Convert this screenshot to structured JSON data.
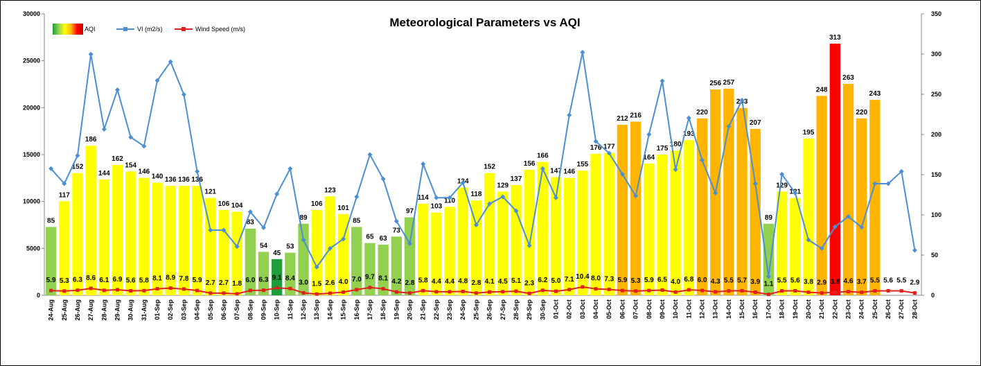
{
  "chart_data": {
    "type": "combo",
    "title": "Meteorological Parameters vs AQI",
    "categories": [
      "24-Aug",
      "25-Aug",
      "26-Aug",
      "27-Aug",
      "28-Aug",
      "29-Aug",
      "30-Aug",
      "31-Aug",
      "01-Sep",
      "02-Sep",
      "03-Sep",
      "04-Sep",
      "05-Sep",
      "06-Sep",
      "07-Sep",
      "08-Sep",
      "09-Sep",
      "10-Sep",
      "11-Sep",
      "12-Sep",
      "13-Sep",
      "14-Sep",
      "15-Sep",
      "16-Sep",
      "17-Sep",
      "18-Sep",
      "19-Sep",
      "20-Sep",
      "21-Sep",
      "22-Sep",
      "23-Sep",
      "24-Sep",
      "25-Sep",
      "26-Sep",
      "27-Sep",
      "28-Sep",
      "29-Sep",
      "30-Sep",
      "01-Oct",
      "02-Oct",
      "03-Oct",
      "04-Oct",
      "05-Oct",
      "06-Oct",
      "07-Oct",
      "08-Oct",
      "09-Oct",
      "10-Oct",
      "11-Oct",
      "12-Oct",
      "13-Oct",
      "14-Oct",
      "15-Oct",
      "16-Oct",
      "17-Oct",
      "18-Oct",
      "19-Oct",
      "20-Oct",
      "21-Oct",
      "22-Oct",
      "23-Oct",
      "24-Oct",
      "25-Oct",
      "26-Oct",
      "27-Oct",
      "28-Oct"
    ],
    "series": [
      {
        "name": "AQI",
        "kind": "bar",
        "axis": "y2",
        "values": [
          85,
          117,
          152,
          186,
          144,
          162,
          154,
          146,
          140,
          136,
          136,
          136,
          121,
          106,
          104,
          83,
          54,
          45,
          53,
          89,
          106,
          123,
          101,
          85,
          65,
          63,
          73,
          97,
          114,
          103,
          110,
          134,
          118,
          152,
          129,
          137,
          156,
          166,
          147,
          146,
          155,
          176,
          177,
          212,
          216,
          164,
          175,
          180,
          193,
          220,
          256,
          257,
          233,
          207,
          89,
          129,
          121,
          195,
          248,
          313,
          263,
          220,
          243,
          null,
          null,
          null
        ],
        "colors": [
          "#92d050",
          "#ffff00",
          "#ffff00",
          "#ffff00",
          "#ffff00",
          "#ffff00",
          "#ffff00",
          "#ffff00",
          "#ffff00",
          "#ffff00",
          "#ffff00",
          "#ffff00",
          "#ffff00",
          "#ffff00",
          "#ffff00",
          "#92d050",
          "#92d050",
          "#1e9e3a",
          "#92d050",
          "#92d050",
          "#ffff00",
          "#ffff00",
          "#ffff00",
          "#92d050",
          "#92d050",
          "#92d050",
          "#92d050",
          "#92d050",
          "#ffff00",
          "#ffff00",
          "#ffff00",
          "#ffff00",
          "#ffff00",
          "#ffff00",
          "#ffff00",
          "#ffff00",
          "#ffff00",
          "#ffff00",
          "#ffff00",
          "#ffff00",
          "#ffff00",
          "#ffff00",
          "#ffff00",
          "#ffb400",
          "#ffb400",
          "#ffff00",
          "#ffff00",
          "#ffff00",
          "#ffff00",
          "#ffb400",
          "#ffb400",
          "#ffb400",
          "#ffb400",
          "#ffb400",
          "#92d050",
          "#ffff00",
          "#ffff00",
          "#ffff00",
          "#ffb400",
          "#ff0000",
          "#ffb400",
          "#ffb400",
          "#ffb400",
          null,
          null,
          null
        ]
      },
      {
        "name": "VI (m2/s)",
        "kind": "line",
        "color": "#4a8fd4",
        "values": [
          13500,
          11900,
          14900,
          25700,
          17700,
          21900,
          16850,
          15900,
          22900,
          24900,
          21400,
          13200,
          6950,
          6950,
          5200,
          8900,
          7200,
          10800,
          13500,
          5900,
          3000,
          5000,
          6000,
          10500,
          15000,
          12400,
          7900,
          5500,
          14000,
          10400,
          10400,
          12000,
          7500,
          9750,
          10500,
          9000,
          5300,
          13500,
          10400,
          19200,
          25900,
          16400,
          15150,
          12900,
          10600,
          17150,
          22850,
          13400,
          18900,
          14400,
          10900,
          18000,
          20800,
          11900,
          2000,
          12900,
          10900,
          5900,
          5000,
          7300,
          8400,
          7250,
          11900,
          11900,
          13200,
          4800
        ]
      },
      {
        "name": "Wind Speed (m/s)",
        "kind": "line",
        "axis": "y2",
        "color": "#e0201b",
        "values": [
          5.9,
          5.3,
          6.3,
          8.6,
          6.1,
          6.9,
          5.6,
          5.8,
          8.1,
          8.9,
          7.8,
          5.9,
          2.7,
          2.7,
          1.8,
          6,
          6.3,
          9.1,
          8.4,
          3,
          1.5,
          2.6,
          4,
          7,
          9.7,
          8.1,
          4.2,
          2.8,
          5.8,
          4.4,
          4.4,
          4.8,
          2.8,
          4.1,
          4.5,
          5.1,
          2.3,
          6.2,
          5,
          7.1,
          10.4,
          8,
          7.3,
          5.9,
          5.3,
          5.9,
          6.5,
          4,
          6.8,
          6,
          4.3,
          5.5,
          5.7,
          3.9,
          1.1,
          5.5,
          5.6,
          3.8,
          2.9,
          3.8,
          4.6,
          3.7,
          5.5,
          5.6,
          5.5,
          2.9
        ],
        "value_labels": [
          "5.9",
          "5.3",
          "6.3",
          "8.6",
          "6.1",
          "6.9",
          "5.6",
          "5.8",
          "8.1",
          "8.9",
          "7.8",
          "5.9",
          "2.7",
          "2.7",
          "1.8",
          "6.0",
          "6.3",
          "9.1",
          "8.4",
          "3.0",
          "1.5",
          "2.6",
          "4.0",
          "7.0",
          "9.7",
          "8.1",
          "4.2",
          "2.8",
          "5.8",
          "4.4",
          "4.4",
          "4.8",
          "2.8",
          "4.1",
          "4.5",
          "5.1",
          "2.3",
          "6.2",
          "5.0",
          "7.1",
          "10.4",
          "8.0",
          "7.3",
          "5.9",
          "5.3",
          "5.9",
          "6.5",
          "4.0",
          "6.8",
          "6.0",
          "4.3",
          "5.5",
          "5.7",
          "3.9",
          "1.1",
          "5.5",
          "5.6",
          "3.8",
          "2.9",
          "3.8",
          "4.6",
          "3.7",
          "5.5",
          "5.6",
          "5.5",
          "2.9"
        ]
      }
    ],
    "ylim": [
      0,
      30000
    ],
    "yticks": [
      0,
      5000,
      10000,
      15000,
      20000,
      25000,
      30000
    ],
    "y2lim": [
      0,
      350
    ],
    "y2ticks": [
      0,
      50,
      100,
      150,
      200,
      250,
      300,
      350
    ]
  }
}
